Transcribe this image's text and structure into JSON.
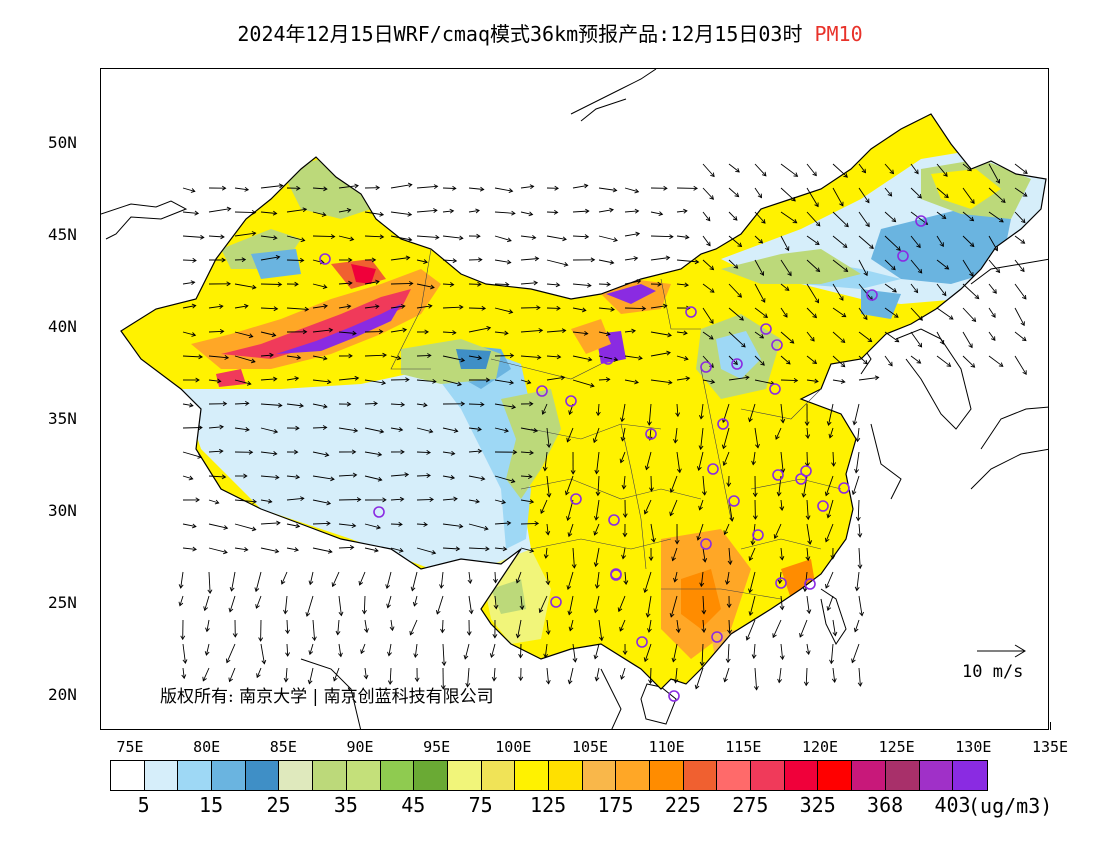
{
  "title": {
    "main": "2024年12月15日WRF/cmaq模式36km预报产品:12月15日03时",
    "variable": "PM10",
    "variable_color": "#e8322a"
  },
  "axes": {
    "y_labels": [
      "50N",
      "45N",
      "40N",
      "35N",
      "30N",
      "25N",
      "20N"
    ],
    "x_labels": [
      "75E",
      "80E",
      "85E",
      "90E",
      "95E",
      "100E",
      "105E",
      "110E",
      "115E",
      "120E",
      "125E",
      "130E",
      "135E"
    ]
  },
  "legend": {
    "colors": [
      "#ffffff",
      "#d6eefa",
      "#9ed8f5",
      "#6ab4e0",
      "#3f8fc6",
      "#dfe9bd",
      "#bcd97a",
      "#c4e07a",
      "#8fcb50",
      "#6aaa34",
      "#f1f57a",
      "#f0e357",
      "#fff200",
      "#ffe000",
      "#f9b74a",
      "#ffa726",
      "#ff8c00",
      "#f06030",
      "#ff6a6a",
      "#f03a5a",
      "#f0003a",
      "#ff0000",
      "#c8187a",
      "#a8306a",
      "#a030c8",
      "#8a2be2"
    ],
    "labels": [
      "5",
      "15",
      "25",
      "35",
      "45",
      "75",
      "125",
      "175",
      "225",
      "275",
      "325",
      "368",
      "403"
    ],
    "units": "(ug/m3)"
  },
  "copyright": "版权所有: 南京大学 | 南京创蓝科技有限公司",
  "wind_reference": {
    "label": "10 m/s"
  },
  "map": {
    "region": "China",
    "palette": {
      "clean": "#d6eefa",
      "low_blue": "#6ab4e0",
      "mid_blue": "#3f8fc6",
      "green": "#bcd97a",
      "dark_green": "#6aaa34",
      "yellow": "#fff200",
      "gold": "#ffe000",
      "orange": "#ffa726",
      "dark_orange": "#ff8c00",
      "red": "#f0003a",
      "magenta": "#c8187a",
      "purple": "#8a2be2"
    },
    "station_marker": "circle-marker",
    "station_color": "#8a2be2"
  }
}
